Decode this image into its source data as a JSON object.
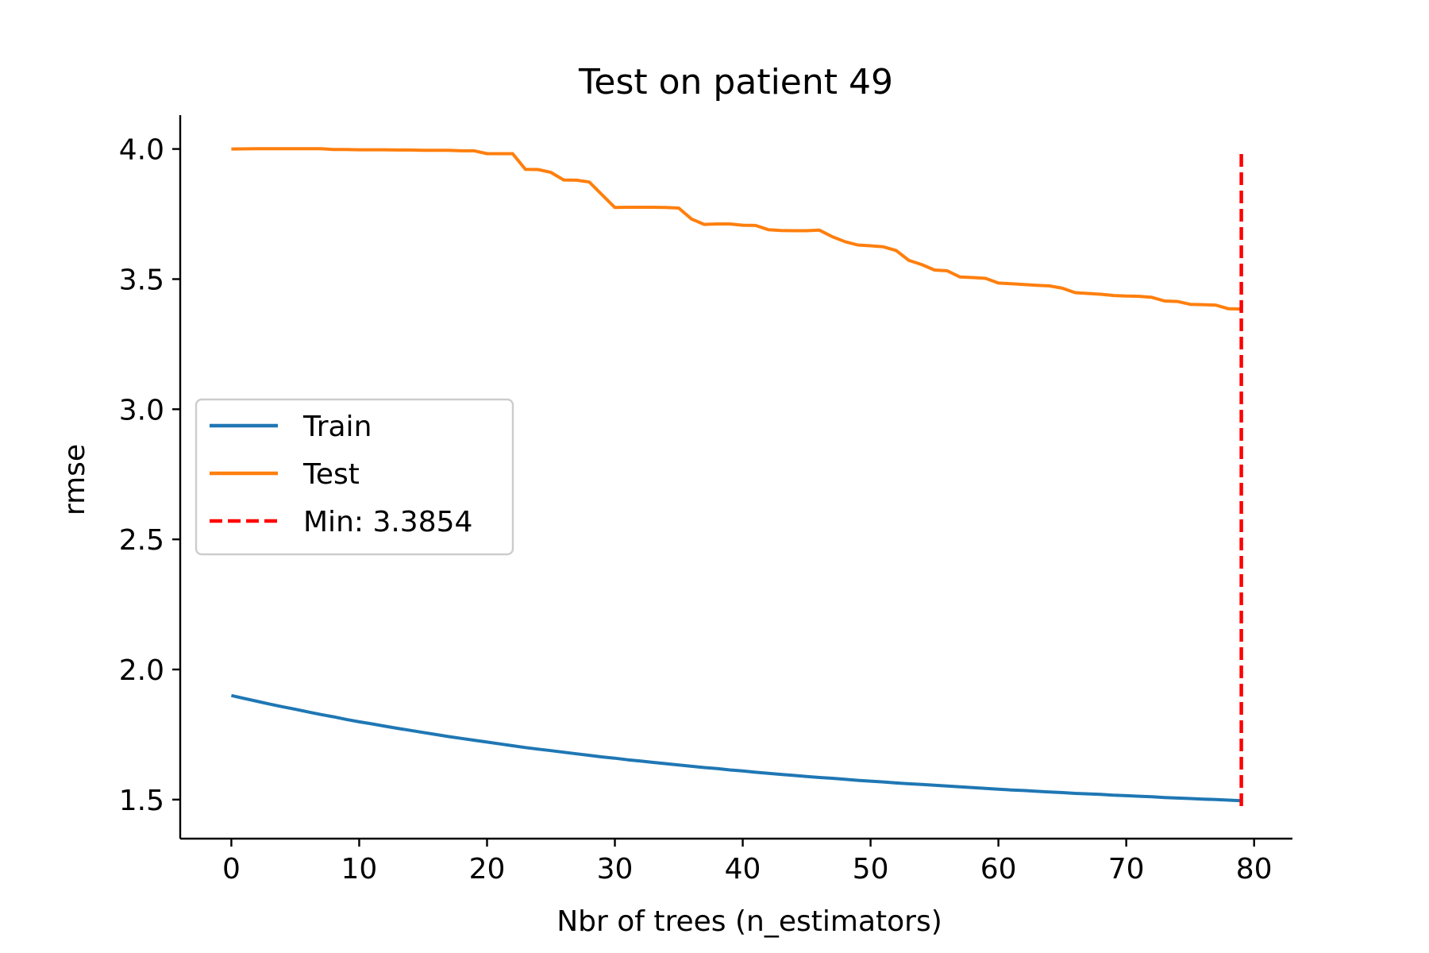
{
  "chart_data": {
    "type": "line",
    "title": "Test on patient 49",
    "xlabel": "Nbr of trees (n_estimators)",
    "ylabel": "rmse",
    "xlim": [
      -4,
      83
    ],
    "ylim": [
      1.35,
      4.13
    ],
    "xticks": [
      0,
      10,
      20,
      30,
      40,
      50,
      60,
      70,
      80
    ],
    "yticks": [
      1.5,
      2.0,
      2.5,
      3.0,
      3.5,
      4.0
    ],
    "xtick_labels": [
      "0",
      "10",
      "20",
      "30",
      "40",
      "50",
      "60",
      "70",
      "80"
    ],
    "ytick_labels": [
      "1.5",
      "2.0",
      "2.5",
      "3.0",
      "3.5",
      "4.0"
    ],
    "grid": false,
    "legend_position": "center-left",
    "series": [
      {
        "name": "Train",
        "color": "#1f77b4",
        "style": "solid",
        "x": [
          0,
          1,
          2,
          3,
          4,
          5,
          6,
          7,
          8,
          9,
          10,
          11,
          12,
          13,
          14,
          15,
          16,
          17,
          18,
          19,
          20,
          21,
          22,
          23,
          24,
          25,
          26,
          27,
          28,
          29,
          30,
          31,
          32,
          33,
          34,
          35,
          36,
          37,
          38,
          39,
          40,
          41,
          42,
          43,
          44,
          45,
          46,
          47,
          48,
          49,
          50,
          51,
          52,
          53,
          54,
          55,
          56,
          57,
          58,
          59,
          60,
          61,
          62,
          63,
          64,
          65,
          66,
          67,
          68,
          69,
          70,
          71,
          72,
          73,
          74,
          75,
          76,
          77,
          78,
          79
        ],
        "y": [
          1.9,
          1.889,
          1.878,
          1.867,
          1.857,
          1.847,
          1.837,
          1.827,
          1.818,
          1.808,
          1.799,
          1.791,
          1.782,
          1.774,
          1.766,
          1.758,
          1.75,
          1.742,
          1.735,
          1.728,
          1.721,
          1.714,
          1.707,
          1.7,
          1.694,
          1.688,
          1.682,
          1.676,
          1.67,
          1.664,
          1.659,
          1.653,
          1.648,
          1.643,
          1.638,
          1.633,
          1.628,
          1.623,
          1.619,
          1.614,
          1.61,
          1.605,
          1.601,
          1.597,
          1.593,
          1.589,
          1.585,
          1.582,
          1.578,
          1.574,
          1.571,
          1.568,
          1.564,
          1.561,
          1.558,
          1.555,
          1.552,
          1.549,
          1.546,
          1.543,
          1.54,
          1.537,
          1.535,
          1.532,
          1.529,
          1.527,
          1.524,
          1.522,
          1.52,
          1.517,
          1.515,
          1.513,
          1.511,
          1.508,
          1.506,
          1.504,
          1.502,
          1.5,
          1.498,
          1.496
        ]
      },
      {
        "name": "Test",
        "color": "#ff7f0e",
        "style": "solid",
        "x": [
          0,
          2,
          4,
          7,
          8,
          9,
          10,
          12,
          13,
          14,
          15,
          16,
          17,
          18,
          19,
          20,
          21,
          22,
          23,
          24,
          25,
          26,
          27,
          28,
          29,
          30,
          31,
          32,
          33,
          34,
          35,
          36,
          37,
          38,
          39,
          40,
          41,
          42,
          43,
          44,
          45,
          46,
          47,
          48,
          49,
          50,
          51,
          52,
          53,
          54,
          55,
          56,
          57,
          58,
          59,
          60,
          61,
          62,
          63,
          64,
          65,
          66,
          67,
          68,
          69,
          70,
          71,
          72,
          73,
          74,
          75,
          76,
          77,
          78,
          79
        ],
        "y": [
          4.0,
          4.001,
          4.001,
          4.001,
          3.998,
          3.998,
          3.997,
          3.997,
          3.996,
          3.996,
          3.995,
          3.995,
          3.995,
          3.993,
          3.993,
          3.982,
          3.982,
          3.982,
          3.922,
          3.921,
          3.91,
          3.881,
          3.88,
          3.873,
          3.824,
          3.775,
          3.776,
          3.776,
          3.776,
          3.775,
          3.773,
          3.731,
          3.71,
          3.712,
          3.712,
          3.707,
          3.706,
          3.69,
          3.687,
          3.686,
          3.686,
          3.688,
          3.663,
          3.644,
          3.631,
          3.628,
          3.624,
          3.61,
          3.572,
          3.556,
          3.535,
          3.532,
          3.508,
          3.506,
          3.503,
          3.485,
          3.482,
          3.479,
          3.476,
          3.474,
          3.465,
          3.448,
          3.445,
          3.442,
          3.437,
          3.435,
          3.434,
          3.43,
          3.416,
          3.414,
          3.403,
          3.402,
          3.4,
          3.386,
          3.385
        ]
      },
      {
        "name": "Min: 3.3854",
        "color": "#ff0000",
        "style": "dashed",
        "x": [
          79,
          79
        ],
        "y": [
          1.475,
          3.99
        ]
      }
    ]
  }
}
